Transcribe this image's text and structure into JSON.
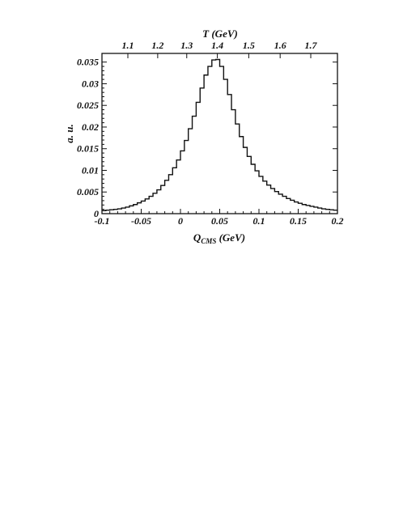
{
  "chart_data": {
    "type": "line",
    "step": true,
    "xlabel": "Q_CMS (GeV)",
    "xlabel_main": "Q",
    "xlabel_sub": "CMS",
    "xlabel_unit": " (GeV)",
    "ylabel": "a. u.",
    "top_xlabel": "T (GeV)",
    "xlim": [
      -0.1,
      0.2
    ],
    "ylim": [
      0,
      0.037
    ],
    "grid": false,
    "x_ticks": [
      -0.1,
      -0.05,
      0,
      0.05,
      0.1,
      0.15,
      0.2
    ],
    "x_tick_labels": [
      "-0.1",
      "-0.05",
      "0",
      "0.05",
      "0.1",
      "0.15",
      "0.2"
    ],
    "y_ticks": [
      0,
      0.005,
      0.01,
      0.015,
      0.02,
      0.025,
      0.03,
      0.035
    ],
    "y_tick_labels": [
      "0",
      "0.005",
      "0.01",
      "0.015",
      "0.02",
      "0.025",
      "0.03",
      "0.035"
    ],
    "top_ticks": [
      1.1,
      1.2,
      1.3,
      1.4,
      1.5,
      1.6,
      1.7
    ],
    "top_tick_labels": [
      "1.1",
      "1.2",
      "1.3",
      "1.4",
      "1.5",
      "1.6",
      "1.7"
    ],
    "top_tick_q_values": [
      -0.067,
      -0.029,
      0.008,
      0.047,
      0.087,
      0.127,
      0.166
    ],
    "bin_edges": [
      -0.1,
      -0.095,
      -0.09,
      -0.085,
      -0.08,
      -0.075,
      -0.07,
      -0.065,
      -0.06,
      -0.055,
      -0.05,
      -0.045,
      -0.04,
      -0.035,
      -0.03,
      -0.025,
      -0.02,
      -0.015,
      -0.01,
      -0.005,
      0,
      0.005,
      0.01,
      0.015,
      0.02,
      0.025,
      0.03,
      0.035,
      0.04,
      0.045,
      0.05,
      0.055,
      0.06,
      0.065,
      0.07,
      0.075,
      0.08,
      0.085,
      0.09,
      0.095,
      0.1,
      0.105,
      0.11,
      0.115,
      0.12,
      0.125,
      0.13,
      0.135,
      0.14,
      0.145,
      0.15,
      0.155,
      0.16,
      0.165,
      0.17,
      0.175,
      0.18,
      0.185,
      0.19,
      0.195,
      0.2
    ],
    "values": [
      0.0007,
      0.0008,
      0.0009,
      0.001,
      0.0011,
      0.0013,
      0.0015,
      0.0018,
      0.0021,
      0.0025,
      0.0029,
      0.0034,
      0.004,
      0.0047,
      0.0055,
      0.0065,
      0.0077,
      0.009,
      0.0106,
      0.0124,
      0.0145,
      0.0169,
      0.0196,
      0.0225,
      0.0257,
      0.029,
      0.032,
      0.034,
      0.0355,
      0.0356,
      0.034,
      0.031,
      0.0275,
      0.024,
      0.0207,
      0.0178,
      0.0153,
      0.0132,
      0.0114,
      0.0099,
      0.0086,
      0.0075,
      0.0066,
      0.0058,
      0.0051,
      0.0045,
      0.004,
      0.0035,
      0.0031,
      0.0027,
      0.0024,
      0.0021,
      0.0019,
      0.0017,
      0.0015,
      0.0013,
      0.0011,
      0.001,
      0.0009,
      0.0008
    ]
  }
}
